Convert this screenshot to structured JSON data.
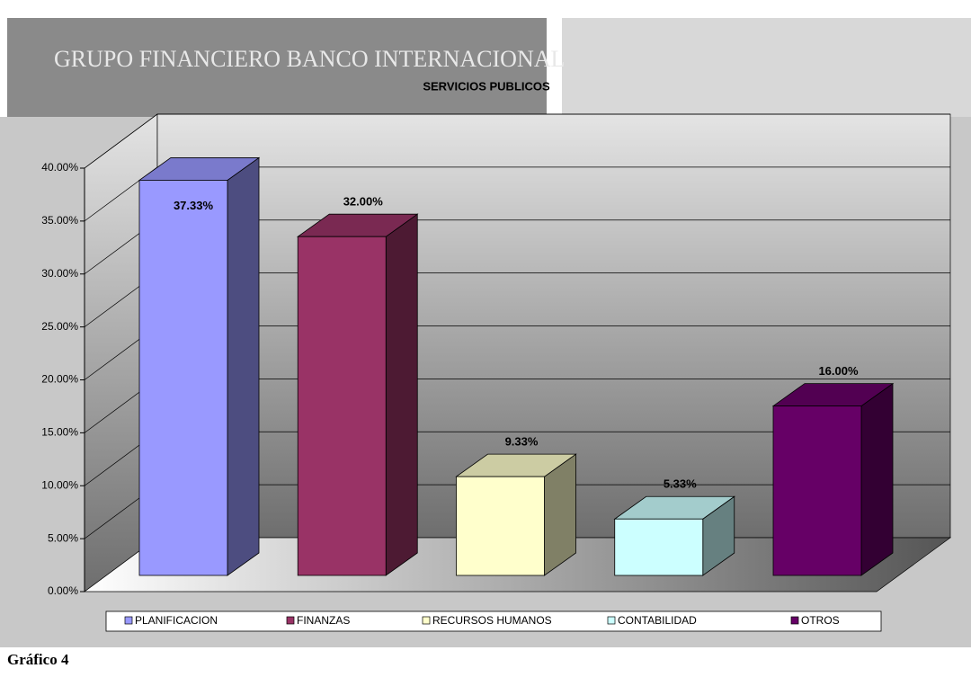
{
  "header": {
    "text": "GRUPO FINANCIERO BANCO INTERNACIONAL"
  },
  "caption": "Gráfico 4",
  "chart_data": {
    "type": "bar3d",
    "title": "SERVICIOS PUBLICOS",
    "categories": [
      "PLANIFICACION",
      "FINANZAS",
      "RECURSOS HUMANOS",
      "CONTABILIDAD",
      "OTROS"
    ],
    "values": [
      37.33,
      32.0,
      9.33,
      5.33,
      16.0
    ],
    "value_labels": [
      "37.33%",
      "32.00%",
      "9.33%",
      "5.33%",
      "16.00%"
    ],
    "colors": [
      "#9999ff",
      "#993366",
      "#ffffcc",
      "#ccffff",
      "#660066"
    ],
    "ylim": [
      0,
      40
    ],
    "yticks": [
      {
        "value": 0,
        "label": "0.00%"
      },
      {
        "value": 5,
        "label": "5.00%"
      },
      {
        "value": 10,
        "label": "10.00%"
      },
      {
        "value": 15,
        "label": "15.00%"
      },
      {
        "value": 20,
        "label": "20.00%"
      },
      {
        "value": 25,
        "label": "25.00%"
      },
      {
        "value": 30,
        "label": "30.00%"
      },
      {
        "value": 35,
        "label": "35.00%"
      },
      {
        "value": 40,
        "label": "40.00%"
      }
    ],
    "grid": true,
    "legend": "bottom"
  }
}
